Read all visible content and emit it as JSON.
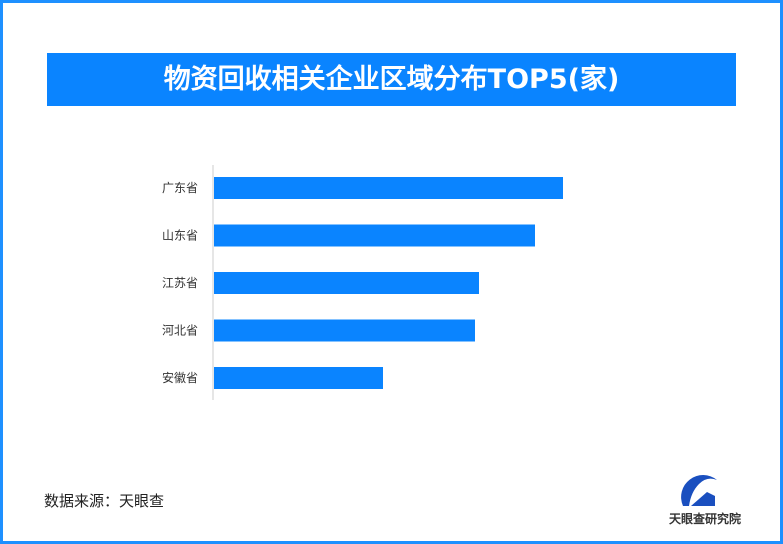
{
  "chart_data": {
    "type": "bar",
    "orientation": "horizontal",
    "title": "物资回收相关企业区域分布TOP5(家)",
    "categories": [
      "广东省",
      "山东省",
      "江苏省",
      "河北省",
      "安徽省"
    ],
    "values": [
      349,
      321,
      265,
      261,
      169
    ],
    "xlim": [
      0,
      400
    ],
    "grid": false,
    "color": "#0a84ff"
  },
  "footer": {
    "source": "数据来源：天眼查"
  },
  "logo": {
    "text": "天眼查研究院"
  }
}
